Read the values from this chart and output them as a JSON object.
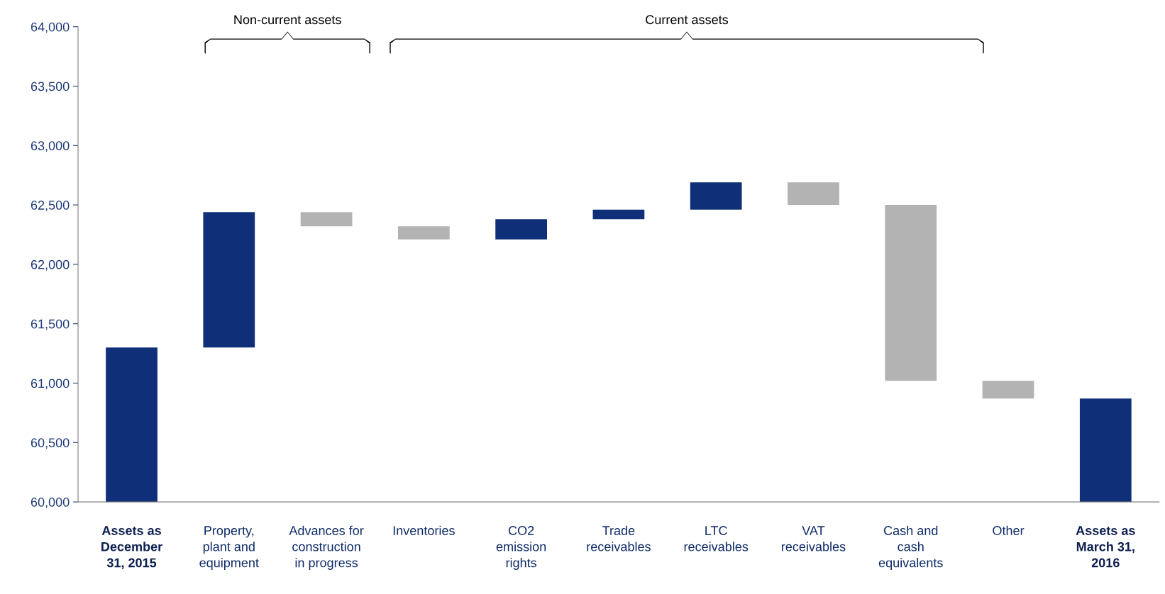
{
  "chart_data": {
    "type": "bar",
    "categories": [
      "Assets as\nDecember\n31, 2015",
      "Property,\nplant and\nequipment",
      "Advances for\nconstruction\nin progress",
      "Inventories",
      "CO2\nemission\nrights",
      "Trade\nreceivables",
      "LTC\nreceivables",
      "VAT\nreceivables",
      "Cash and\ncash\nequivalents",
      "Other",
      "Assets as\nMarch 31,\n2016"
    ],
    "base": [
      60000,
      61300,
      62440,
      62320,
      62210,
      62380,
      62460,
      62690,
      62500,
      61020,
      60000
    ],
    "values": [
      1300,
      1140,
      -120,
      -110,
      170,
      80,
      230,
      -190,
      -1480,
      -150,
      870
    ],
    "colors": [
      "#0f3079",
      "#0f3079",
      "#b3b3b3",
      "#b3b3b3",
      "#0f3079",
      "#0f3079",
      "#0f3079",
      "#b3b3b3",
      "#b3b3b3",
      "#b3b3b3",
      "#0f3079"
    ],
    "ylim": [
      60000,
      64000
    ],
    "yticks": [
      {
        "value": 60000,
        "label": "60,000"
      },
      {
        "value": 60500,
        "label": "60,500"
      },
      {
        "value": 61000,
        "label": "61,000"
      },
      {
        "value": 61500,
        "label": "61,500"
      },
      {
        "value": 62000,
        "label": "62,000"
      },
      {
        "value": 62500,
        "label": "62,500"
      },
      {
        "value": 63000,
        "label": "63,000"
      },
      {
        "value": 63500,
        "label": "63,500"
      },
      {
        "value": 64000,
        "label": "64,000"
      }
    ],
    "annotations": [
      "Non-current assets",
      "Current assets"
    ],
    "grid": false,
    "legend": false
  }
}
